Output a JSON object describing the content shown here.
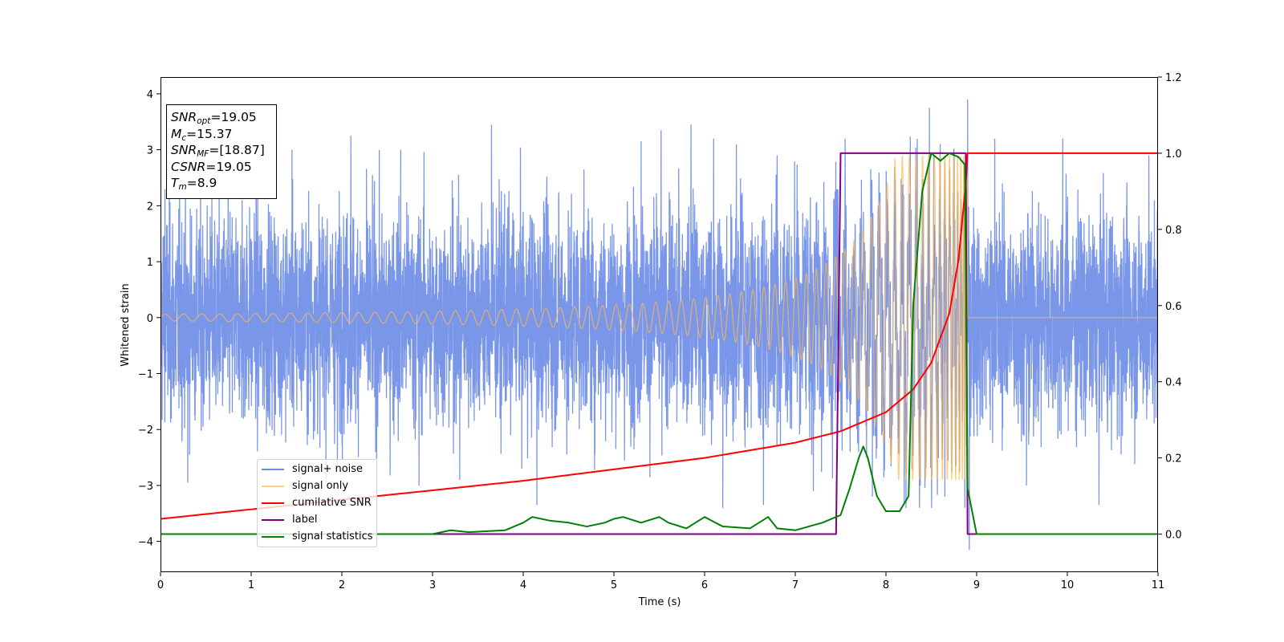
{
  "info_box": {
    "snr_opt_label": "SNR",
    "snr_opt_sub": "opt",
    "snr_opt_value": "=19.05",
    "mc_label": "M",
    "mc_sub": "c",
    "mc_value": "=15.37",
    "snr_mf_label": "SNR",
    "snr_mf_sub": "MF",
    "snr_mf_value": "=[18.87]",
    "csnr_label": "CSNR",
    "csnr_value": "=19.05",
    "tm_label": "T",
    "tm_sub": "m",
    "tm_value": "=8.9"
  },
  "chart_data": {
    "type": "line",
    "title": "",
    "xlabel": "Time (s)",
    "ylabel": "Whitened strain",
    "y2label": "",
    "xlim": [
      0,
      11
    ],
    "ylim": [
      -4.55,
      4.3
    ],
    "y2lim": [
      -0.1,
      1.2
    ],
    "xticks": [
      0,
      1,
      2,
      3,
      4,
      5,
      6,
      7,
      8,
      9,
      10,
      11
    ],
    "yticks": [
      -4,
      -3,
      -2,
      -1,
      0,
      1,
      2,
      3,
      4
    ],
    "y2ticks": [
      "0.0",
      "0.2",
      "0.4",
      "0.6",
      "0.8",
      "1.0",
      "1.2"
    ],
    "legend_position": "lower-left",
    "grid": false,
    "series": [
      {
        "name": "signal+ noise",
        "axis": "left",
        "color": "#6b8be6",
        "description_points": {
          "noise_peak_samples": [
            [
              0.05,
              2.3
            ],
            [
              0.3,
              -2.95
            ],
            [
              0.9,
              2.1
            ],
            [
              1.45,
              3.0
            ],
            [
              1.95,
              -2.7
            ],
            [
              2.1,
              3.25
            ],
            [
              2.65,
              3.0
            ],
            [
              2.85,
              -3.0
            ],
            [
              3.3,
              -2.9
            ],
            [
              3.65,
              3.45
            ],
            [
              4.15,
              -3.35
            ],
            [
              5.3,
              3.15
            ],
            [
              5.52,
              3.35
            ],
            [
              5.85,
              3.45
            ],
            [
              6.1,
              3.2
            ],
            [
              6.2,
              -3.4
            ],
            [
              6.35,
              3.1
            ],
            [
              6.65,
              -3.35
            ],
            [
              6.8,
              2.9
            ],
            [
              7.2,
              -3.1
            ],
            [
              7.55,
              3.2
            ],
            [
              7.85,
              -3.2
            ],
            [
              8.2,
              -3.3
            ],
            [
              8.48,
              3.75
            ],
            [
              8.65,
              -3.2
            ],
            [
              8.9,
              3.9
            ],
            [
              8.92,
              -4.15
            ],
            [
              9.2,
              3.2
            ],
            [
              9.55,
              -3.0
            ],
            [
              9.95,
              3.2
            ],
            [
              10.35,
              -3.35
            ],
            [
              10.9,
              2.9
            ]
          ]
        }
      },
      {
        "name": "signal only",
        "axis": "left",
        "color": "#ffb84d",
        "chirp": {
          "start_time": 0.0,
          "merger_time": 8.9,
          "start_amplitude": 0.06,
          "peak_amplitude": 2.9
        }
      },
      {
        "name": "cumilative SNR",
        "axis": "right",
        "color": "#ff0000",
        "x": [
          0,
          1,
          2,
          3,
          4,
          5,
          6,
          7,
          7.5,
          8,
          8.3,
          8.5,
          8.7,
          8.8,
          8.88,
          8.9,
          11
        ],
        "y": [
          0.04,
          0.065,
          0.09,
          0.115,
          0.14,
          0.17,
          0.2,
          0.24,
          0.27,
          0.32,
          0.38,
          0.45,
          0.58,
          0.72,
          0.92,
          1.0,
          1.0
        ]
      },
      {
        "name": "label",
        "axis": "right",
        "color": "#800080",
        "x": [
          0,
          7.45,
          7.5,
          8.88,
          8.9,
          11
        ],
        "y": [
          0.0,
          0.0,
          1.0,
          1.0,
          0.0,
          0.0
        ]
      },
      {
        "name": "signal statistics",
        "axis": "right",
        "color": "#008000",
        "x": [
          0,
          2,
          3,
          3.2,
          3.4,
          3.8,
          4.0,
          4.1,
          4.3,
          4.5,
          4.7,
          4.9,
          5.0,
          5.1,
          5.3,
          5.5,
          5.6,
          5.8,
          5.9,
          6.0,
          6.2,
          6.5,
          6.7,
          6.8,
          7.0,
          7.3,
          7.5,
          7.6,
          7.7,
          7.75,
          7.8,
          7.9,
          8.0,
          8.15,
          8.25,
          8.3,
          8.4,
          8.5,
          8.6,
          8.7,
          8.8,
          8.87,
          8.9,
          9.0,
          11
        ],
        "y": [
          0.0,
          0.0,
          0.0,
          0.01,
          0.005,
          0.01,
          0.03,
          0.045,
          0.035,
          0.03,
          0.02,
          0.03,
          0.04,
          0.045,
          0.03,
          0.045,
          0.03,
          0.015,
          0.03,
          0.045,
          0.02,
          0.015,
          0.045,
          0.015,
          0.01,
          0.03,
          0.05,
          0.12,
          0.2,
          0.23,
          0.2,
          0.1,
          0.06,
          0.06,
          0.1,
          0.6,
          0.9,
          1.0,
          0.98,
          1.0,
          0.99,
          0.97,
          0.12,
          0.0,
          0.0
        ]
      }
    ]
  }
}
